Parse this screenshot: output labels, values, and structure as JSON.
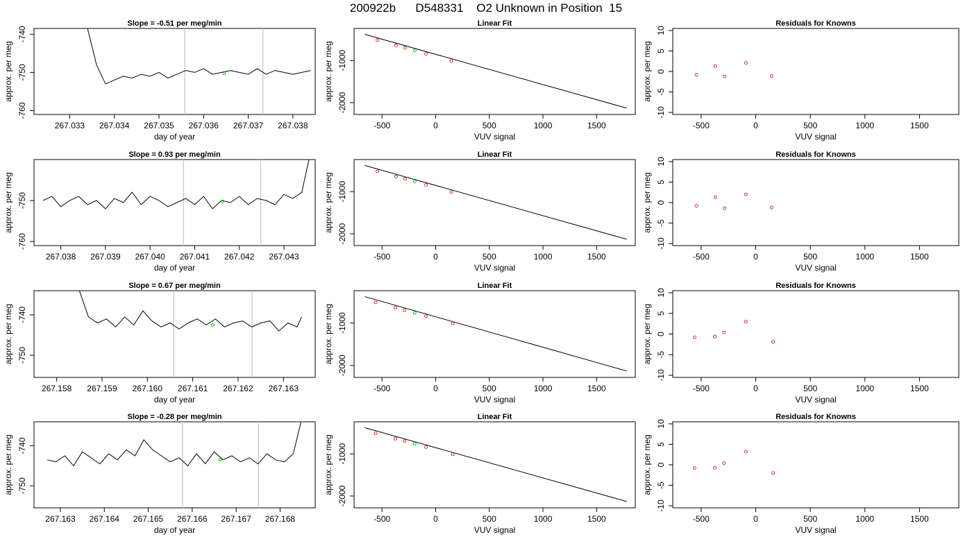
{
  "title": "200922b      D548331    O2 Unknown in Position  15",
  "chart_data": [
    {
      "type": "line",
      "title": "Slope =  -0.51  per meg/min",
      "xlabel": "day of year",
      "ylabel": "approx. per meg",
      "xlim": [
        267.0322,
        267.0385
      ],
      "ylim": [
        -761,
        -738.5
      ],
      "xticks": [
        267.033,
        267.034,
        267.035,
        267.036,
        267.037,
        267.038
      ],
      "xtick_labels": [
        "267.033",
        "267.034",
        "267.035",
        "267.036",
        "267.037",
        "267.038"
      ],
      "yticks": [
        -760,
        -750,
        -740
      ],
      "ytick_labels": [
        "-760",
        "-750",
        "-740"
      ],
      "vlines": [
        267.03558,
        267.03733
      ],
      "marker": {
        "x": 267.03646,
        "y": -750.3,
        "color": "#00cc00"
      },
      "series": [
        {
          "color": "#000000",
          "x": [
            267.0334,
            267.0336,
            267.0338,
            267.034,
            267.0342,
            267.0344,
            267.0346,
            267.0348,
            267.035,
            267.0352,
            267.0354,
            267.0356,
            267.0358,
            267.036,
            267.0362,
            267.0364,
            267.0366,
            267.0368,
            267.037,
            267.0372,
            267.0374,
            267.0376,
            267.0378,
            267.038,
            267.0382,
            267.0384
          ],
          "y": [
            -738.5,
            -748,
            -753,
            -752,
            -751,
            -751.5,
            -750.5,
            -751,
            -750,
            -751.5,
            -750.5,
            -749.5,
            -750,
            -749,
            -750.5,
            -750,
            -749.5,
            -750,
            -750.5,
            -749,
            -750.5,
            -749.5,
            -750,
            -750.5,
            -750,
            -749.5
          ]
        }
      ]
    },
    {
      "type": "scatter",
      "title": "Linear Fit",
      "xlabel": "VUV signal",
      "ylabel": "approx. per meg",
      "xlim": [
        -760,
        1860
      ],
      "ylim": [
        -2280,
        -240
      ],
      "xticks": [
        -500,
        0,
        500,
        1000,
        1500
      ],
      "xtick_labels": [
        "-500",
        "0",
        "500",
        "1000",
        "1500"
      ],
      "yticks": [
        -2000,
        -1000
      ],
      "ytick_labels": [
        "-2000",
        "-1000"
      ],
      "fit_line": {
        "x": [
          -660,
          1780
        ],
        "y": [
          -380,
          -2130
        ]
      },
      "points": {
        "color": "#cc3333",
        "x": [
          -543,
          -370,
          -285,
          -90,
          145
        ],
        "y": [
          -517,
          -640,
          -700,
          -840,
          -1010
        ]
      },
      "unknown": {
        "color": "#00cc00",
        "x": [
          -195
        ],
        "y": [
          -760
        ]
      }
    },
    {
      "type": "scatter",
      "title": "Residuals for Knowns",
      "xlabel": "VUV signal",
      "ylabel": "approx. per meg",
      "xlim": [
        -760,
        1860
      ],
      "ylim": [
        -10.5,
        10.5
      ],
      "xticks": [
        -500,
        0,
        500,
        1000,
        1500
      ],
      "xtick_labels": [
        "-500",
        "0",
        "500",
        "1000",
        "1500"
      ],
      "yticks": [
        -10,
        -5,
        0,
        5,
        10
      ],
      "ytick_labels": [
        "-10",
        "-5",
        "0",
        "5",
        "10"
      ],
      "points": {
        "color": "#cc3333",
        "x": [
          -543,
          -370,
          -285,
          -90,
          145
        ],
        "y": [
          -0.8,
          1.3,
          -1.2,
          2.1,
          -1.1
        ]
      }
    },
    {
      "type": "line",
      "title": "Slope =  0.93  per meg/min",
      "xlabel": "day of year",
      "ylabel": "approx. per meg",
      "xlim": [
        267.0374,
        267.0437
      ],
      "ylim": [
        -761,
        -740
      ],
      "xticks": [
        267.038,
        267.039,
        267.04,
        267.041,
        267.042,
        267.043
      ],
      "xtick_labels": [
        "267.038",
        "267.039",
        "267.040",
        "267.041",
        "267.042",
        "267.043"
      ],
      "yticks": [
        -760,
        -750
      ],
      "ytick_labels": [
        "-760",
        "-750"
      ],
      "vlines": [
        267.04075,
        267.04248
      ],
      "marker": {
        "x": 267.04162,
        "y": -750.2,
        "color": "#00cc00"
      },
      "series": [
        {
          "color": "#000000",
          "x": [
            267.0376,
            267.0378,
            267.038,
            267.0382,
            267.0384,
            267.0386,
            267.0388,
            267.039,
            267.0392,
            267.0394,
            267.0396,
            267.0398,
            267.04,
            267.0402,
            267.0404,
            267.0406,
            267.0408,
            267.041,
            267.0412,
            267.0414,
            267.0416,
            267.0418,
            267.042,
            267.0422,
            267.0424,
            267.0426,
            267.0428,
            267.043,
            267.0432,
            267.0434,
            267.0436
          ],
          "y": [
            -750,
            -749,
            -751.5,
            -750,
            -749,
            -751,
            -750,
            -752,
            -749.5,
            -750.5,
            -748,
            -751,
            -749,
            -750,
            -751.5,
            -750.5,
            -749.5,
            -751,
            -749,
            -752,
            -750,
            -750.5,
            -749,
            -751,
            -749.5,
            -750,
            -751,
            -748.5,
            -749.5,
            -748,
            -738
          ]
        }
      ]
    },
    {
      "type": "scatter",
      "title": "Linear Fit",
      "xlabel": "VUV signal",
      "ylabel": "approx. per meg",
      "xlim": [
        -760,
        1860
      ],
      "ylim": [
        -2280,
        -240
      ],
      "xticks": [
        -500,
        0,
        500,
        1000,
        1500
      ],
      "xtick_labels": [
        "-500",
        "0",
        "500",
        "1000",
        "1500"
      ],
      "yticks": [
        -2000,
        -1000
      ],
      "ytick_labels": [
        "-2000",
        "-1000"
      ],
      "fit_line": {
        "x": [
          -660,
          1780
        ],
        "y": [
          -380,
          -2130
        ]
      },
      "points": {
        "color": "#cc3333",
        "x": [
          -543,
          -370,
          -285,
          -90,
          145
        ],
        "y": [
          -517,
          -640,
          -700,
          -840,
          -1010
        ]
      },
      "unknown": {
        "color": "#00cc00",
        "x": [
          -195
        ],
        "y": [
          -760
        ]
      }
    },
    {
      "type": "scatter",
      "title": "Residuals for Knowns",
      "xlabel": "VUV signal",
      "ylabel": "approx. per meg",
      "xlim": [
        -760,
        1860
      ],
      "ylim": [
        -10.5,
        10.5
      ],
      "xticks": [
        -500,
        0,
        500,
        1000,
        1500
      ],
      "xtick_labels": [
        "-500",
        "0",
        "500",
        "1000",
        "1500"
      ],
      "yticks": [
        -10,
        -5,
        0,
        5,
        10
      ],
      "ytick_labels": [
        "-10",
        "-5",
        "0",
        "5",
        "10"
      ],
      "points": {
        "color": "#cc3333",
        "x": [
          -543,
          -370,
          -285,
          -90,
          145
        ],
        "y": [
          -0.8,
          1.3,
          -1.4,
          2.0,
          -1.2
        ]
      }
    },
    {
      "type": "line",
      "title": "Slope =  0.67  per meg/min",
      "xlabel": "day of year",
      "ylabel": "approx. per meg",
      "xlim": [
        267.1575,
        267.1637
      ],
      "ylim": [
        -755.5,
        -734
      ],
      "xticks": [
        267.158,
        267.159,
        267.16,
        267.161,
        267.162,
        267.163
      ],
      "xtick_labels": [
        "267.158",
        "267.159",
        "267.160",
        "267.161",
        "267.162",
        "267.163"
      ],
      "yticks": [
        -750,
        -740
      ],
      "ytick_labels": [
        "-750",
        "-740"
      ],
      "vlines": [
        267.16058,
        267.16231
      ],
      "marker": {
        "x": 267.16144,
        "y": -742.5,
        "color": "#00cc00"
      },
      "series": [
        {
          "color": "#000000",
          "x": [
            267.1585,
            267.1587,
            267.1589,
            267.1591,
            267.1593,
            267.1595,
            267.1597,
            267.1599,
            267.1601,
            267.1603,
            267.1605,
            267.1607,
            267.1609,
            267.1611,
            267.1613,
            267.1615,
            267.1617,
            267.1619,
            267.1621,
            267.1623,
            267.1625,
            267.1627,
            267.1629,
            267.1631,
            267.1633,
            267.1634
          ],
          "y": [
            -734,
            -740.5,
            -742,
            -741,
            -743,
            -740.5,
            -742.5,
            -739,
            -741.5,
            -743,
            -742,
            -743.5,
            -742,
            -741,
            -742.5,
            -741,
            -743,
            -742,
            -741.5,
            -743,
            -742,
            -741.5,
            -744,
            -742,
            -743,
            -740.5
          ]
        }
      ]
    },
    {
      "type": "scatter",
      "title": "Linear Fit",
      "xlabel": "VUV signal",
      "ylabel": "approx. per meg",
      "xlim": [
        -760,
        1860
      ],
      "ylim": [
        -2280,
        -240
      ],
      "xticks": [
        -500,
        0,
        500,
        1000,
        1500
      ],
      "xtick_labels": [
        "-500",
        "0",
        "500",
        "1000",
        "1500"
      ],
      "yticks": [
        -2000,
        -1000
      ],
      "ytick_labels": [
        "-2000",
        "-1000"
      ],
      "fit_line": {
        "x": [
          -660,
          1780
        ],
        "y": [
          -380,
          -2130
        ]
      },
      "points": {
        "color": "#cc3333",
        "x": [
          -560,
          -375,
          -290,
          -90,
          160
        ],
        "y": [
          -515,
          -640,
          -700,
          -840,
          -1010
        ]
      },
      "unknown": {
        "color": "#00cc00",
        "x": [
          -195
        ],
        "y": [
          -760
        ]
      }
    },
    {
      "type": "scatter",
      "title": "Residuals for Knowns",
      "xlabel": "VUV signal",
      "ylabel": "approx. per meg",
      "xlim": [
        -760,
        1860
      ],
      "ylim": [
        -10.5,
        10.5
      ],
      "xticks": [
        -500,
        0,
        500,
        1000,
        1500
      ],
      "xtick_labels": [
        "-500",
        "0",
        "500",
        "1000",
        "1500"
      ],
      "yticks": [
        -10,
        -5,
        0,
        5,
        10
      ],
      "ytick_labels": [
        "-10",
        "-5",
        "0",
        "5",
        "10"
      ],
      "points": {
        "color": "#cc3333",
        "x": [
          -560,
          -375,
          -290,
          -90,
          160
        ],
        "y": [
          -0.8,
          -0.6,
          0.4,
          3.0,
          -1.9
        ]
      }
    },
    {
      "type": "line",
      "title": "Slope =  -0.28  per meg/min",
      "xlabel": "day of year",
      "ylabel": "approx. per meg",
      "xlim": [
        267.1624,
        267.1688
      ],
      "ylim": [
        -755.5,
        -734
      ],
      "xticks": [
        267.163,
        267.164,
        267.165,
        267.166,
        267.167,
        267.168
      ],
      "xtick_labels": [
        "267.163",
        "267.164",
        "267.165",
        "267.166",
        "267.167",
        "267.168"
      ],
      "yticks": [
        -750,
        -740
      ],
      "ytick_labels": [
        "-750",
        "-740"
      ],
      "vlines": [
        267.16578,
        267.16751
      ],
      "marker": {
        "x": 267.16664,
        "y": -743.5,
        "color": "#00cc00"
      },
      "series": [
        {
          "color": "#000000",
          "x": [
            267.1627,
            267.1629,
            267.1631,
            267.1633,
            267.1635,
            267.1637,
            267.1639,
            267.1641,
            267.1643,
            267.1645,
            267.1647,
            267.1649,
            267.1651,
            267.1653,
            267.1655,
            267.1657,
            267.1659,
            267.1661,
            267.1663,
            267.1665,
            267.1667,
            267.1669,
            267.1671,
            267.1673,
            267.1675,
            267.1677,
            267.1679,
            267.1681,
            267.1683,
            267.1685
          ],
          "y": [
            -743.5,
            -744,
            -742.5,
            -745,
            -741.5,
            -743,
            -744.5,
            -742,
            -743.5,
            -741,
            -742.5,
            -738.5,
            -741,
            -742.5,
            -744,
            -743,
            -745,
            -742,
            -744.5,
            -741.5,
            -743.5,
            -742.5,
            -744,
            -743,
            -744.5,
            -742,
            -743.5,
            -744,
            -742,
            -733
          ]
        }
      ]
    },
    {
      "type": "scatter",
      "title": "Linear Fit",
      "xlabel": "VUV signal",
      "ylabel": "approx. per meg",
      "xlim": [
        -760,
        1860
      ],
      "ylim": [
        -2280,
        -240
      ],
      "xticks": [
        -500,
        0,
        500,
        1000,
        1500
      ],
      "xtick_labels": [
        "-500",
        "0",
        "500",
        "1000",
        "1500"
      ],
      "yticks": [
        -2000,
        -1000
      ],
      "ytick_labels": [
        "-2000",
        "-1000"
      ],
      "fit_line": {
        "x": [
          -660,
          1780
        ],
        "y": [
          -380,
          -2130
        ]
      },
      "points": {
        "color": "#cc3333",
        "x": [
          -560,
          -375,
          -290,
          -90,
          160
        ],
        "y": [
          -515,
          -640,
          -700,
          -840,
          -1010
        ]
      },
      "unknown": {
        "color": "#00cc00",
        "x": [
          -195
        ],
        "y": [
          -760
        ]
      }
    },
    {
      "type": "scatter",
      "title": "Residuals for Knowns",
      "xlabel": "VUV signal",
      "ylabel": "approx. per meg",
      "xlim": [
        -760,
        1860
      ],
      "ylim": [
        -10.5,
        10.5
      ],
      "xticks": [
        -500,
        0,
        500,
        1000,
        1500
      ],
      "xtick_labels": [
        "-500",
        "0",
        "500",
        "1000",
        "1500"
      ],
      "yticks": [
        -10,
        -5,
        0,
        5,
        10
      ],
      "ytick_labels": [
        "-10",
        "-5",
        "0",
        "5",
        "10"
      ],
      "points": {
        "color": "#cc3333",
        "x": [
          -560,
          -375,
          -290,
          -90,
          160
        ],
        "y": [
          -0.8,
          -0.7,
          0.4,
          3.2,
          -2.0
        ]
      }
    }
  ]
}
